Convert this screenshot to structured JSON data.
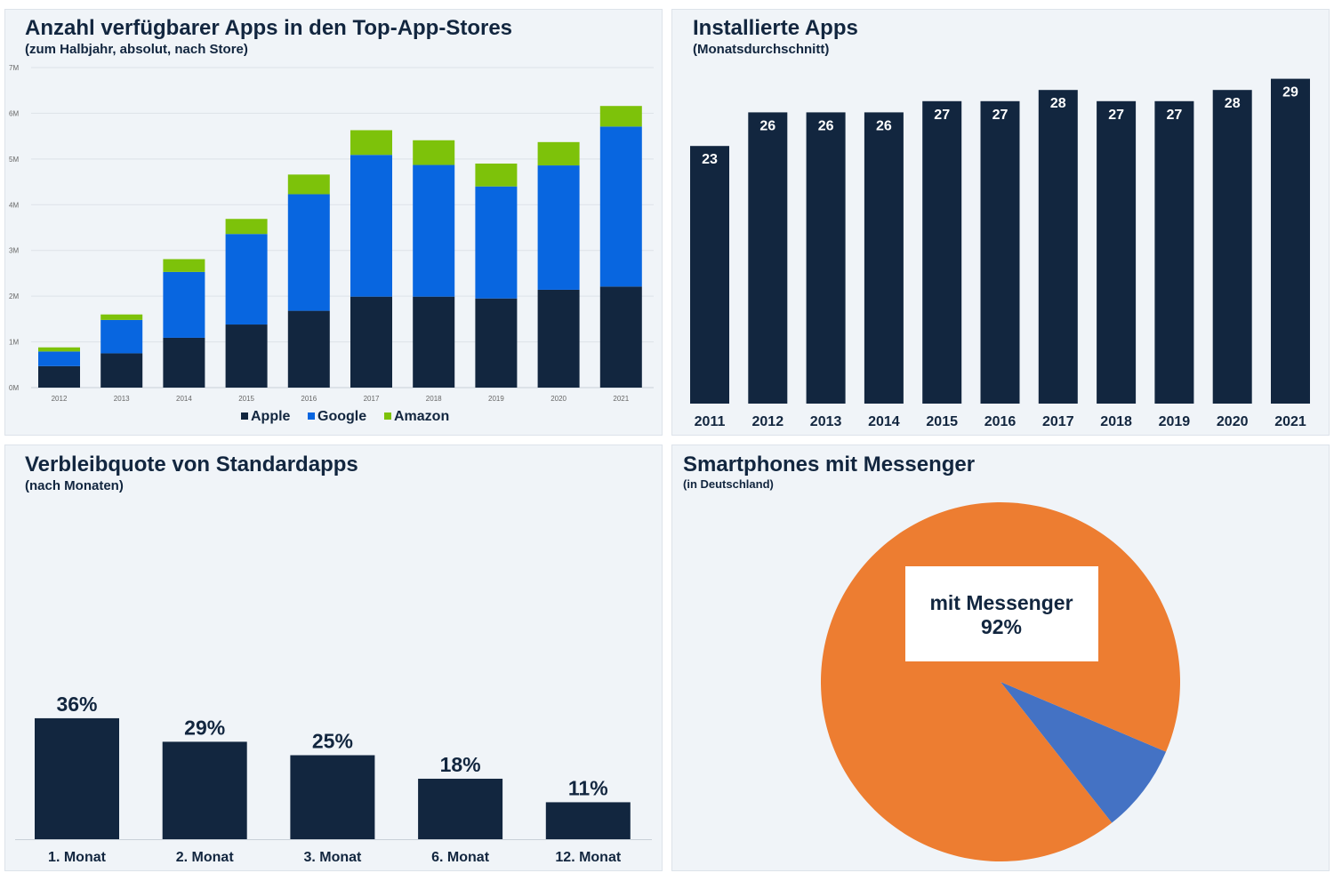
{
  "colors": {
    "apple": "#12263f",
    "google": "#0866e0",
    "amazon": "#7dc20a",
    "navy": "#12263f",
    "pie_main": "#ed7d31",
    "pie_other": "#4472c4"
  },
  "chart_data": [
    {
      "type": "bar",
      "stacked": true,
      "title": "Anzahl verfügbarer Apps in den Top-App-Stores",
      "subtitle": "(zum Halbjahr, absolut, nach Store)",
      "categories": [
        "2012",
        "2013",
        "2014",
        "2015",
        "2016",
        "2017",
        "2018",
        "2019",
        "2020",
        "2021"
      ],
      "series": [
        {
          "name": "Apple",
          "values": [
            0.47,
            0.75,
            1.09,
            1.38,
            1.68,
            1.99,
            1.99,
            1.95,
            2.14,
            2.21
          ]
        },
        {
          "name": "Google",
          "values": [
            0.32,
            0.73,
            1.44,
            1.98,
            2.55,
            3.1,
            2.88,
            2.45,
            2.72,
            3.5
          ]
        },
        {
          "name": "Amazon",
          "values": [
            0.09,
            0.12,
            0.28,
            0.33,
            0.43,
            0.54,
            0.54,
            0.5,
            0.51,
            0.45
          ]
        }
      ],
      "yticks": [
        "0M",
        "1M",
        "2M",
        "3M",
        "4M",
        "5M",
        "6M",
        "7M"
      ],
      "ylim": [
        0,
        7
      ],
      "unit": "millions",
      "grid": true,
      "legend": "bottom"
    },
    {
      "type": "bar",
      "title": "Installierte Apps",
      "subtitle": "(Monatsdurchschnitt)",
      "categories": [
        "2011",
        "2012",
        "2013",
        "2014",
        "2015",
        "2016",
        "2017",
        "2018",
        "2019",
        "2020",
        "2021"
      ],
      "values": [
        23,
        26,
        26,
        26,
        27,
        27,
        28,
        27,
        27,
        28,
        29
      ],
      "data_labels": true
    },
    {
      "type": "bar",
      "title": "Verbleibquote von Standardapps",
      "subtitle": "(nach Monaten)",
      "categories": [
        "1. Monat",
        "2. Monat",
        "3. Monat",
        "6. Monat",
        "12. Monat"
      ],
      "values": [
        36,
        29,
        25,
        18,
        11
      ],
      "value_labels": [
        "36%",
        "29%",
        "25%",
        "18%",
        "11%"
      ]
    },
    {
      "type": "pie",
      "title": "Smartphones mit Messenger",
      "subtitle": "(in Deutschland)",
      "slices": [
        {
          "name": "mit Messenger",
          "value": 92,
          "label": "92%"
        },
        {
          "name": "",
          "value": 8
        }
      ]
    }
  ]
}
